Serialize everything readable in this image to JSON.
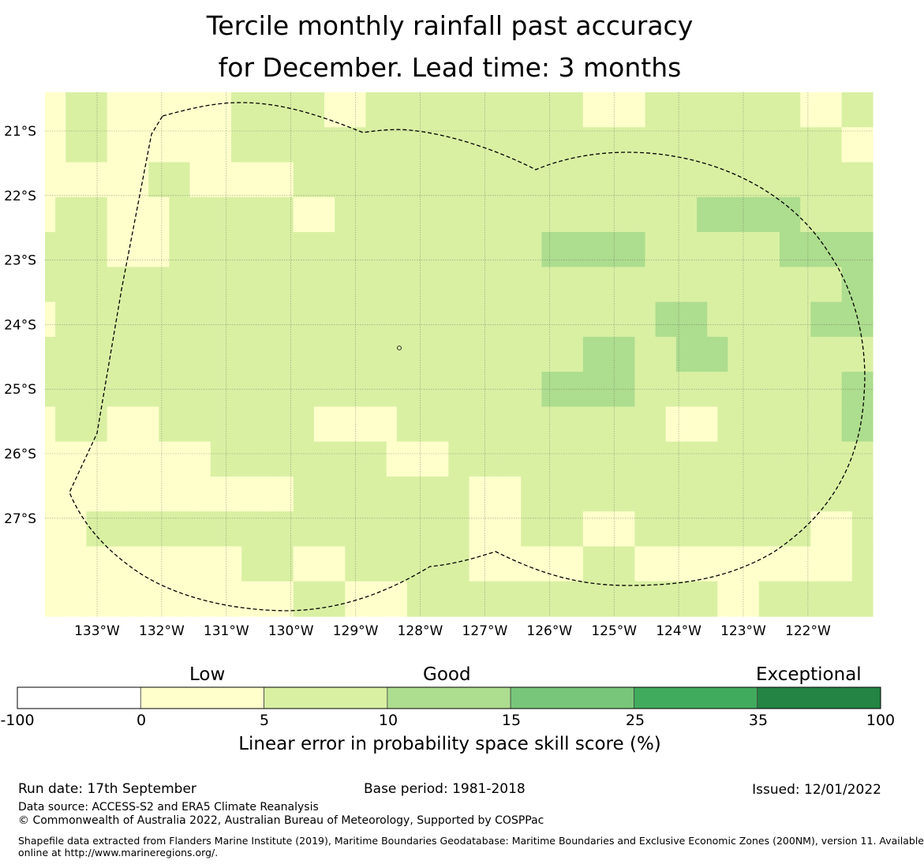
{
  "title": {
    "line1": "Tercile monthly rainfall past accuracy",
    "line2": "for December. Lead time: 3 months"
  },
  "map": {
    "lon_labels": [
      "133°W",
      "132°W",
      "131°W",
      "130°W",
      "129°W",
      "128°W",
      "127°W",
      "126°W",
      "125°W",
      "124°W",
      "123°W",
      "122°W"
    ],
    "lat_labels": [
      "21°S",
      "22°S",
      "23°S",
      "24°S",
      "25°S",
      "26°S",
      "27°S"
    ],
    "grid_rows": [
      "00111100000000000011111111100001111111111111111111110000001111111111111110000111",
      "00111100000000000011111111111111111111111111111111111111111111111111111111111000",
      "00000000001111000000000011111111111111111111111111111111111111111111111111111111",
      "01111100000011111111111100001111111111111111111111111111111111122222222221111111",
      "11111100000011111111111111111111111111111111111122222222221111111111111222222222",
      "11111111111111111111111111111111111111111111111111111111111111111111111111111222",
      "01111111111111111111111111111111111111111111111111111111111222221111111111222222",
      "11111111111111111111111111111111111111111111111111112222211112222211111111111111",
      "11111111111111111111111111111111111111111111111122222222211111111111111111111222",
      "01111100000111111111111111000000001111111111111111111111111100000111111111111222",
      "00000000000000001111111111111111100000011111111111111111111111111111111111111111",
      "00000000000000000000000011111111111111111000001111111111111111111111111111111111",
      "00001111111111111111111111111111111111111000001111110000011111111111111111000011",
      "00000000000000000001111100000111111111111000000000001111100000000000000000000011",
      "00000000000000000000000011111000000111111111111111111111111111111000011111111111"
    ],
    "color_classes": [
      "#ffffcc",
      "#d9f0a3",
      "#addd8e"
    ],
    "color_classes_note": "0: 0–5, 1: 5–10, 2: 10–15"
  },
  "colorbar": {
    "categories": [
      "Low",
      "Good",
      "Exceptional"
    ],
    "ticks": [
      "-100",
      "0",
      "5",
      "10",
      "15",
      "25",
      "35",
      "100"
    ],
    "colors": [
      "#ffffff",
      "#ffffcc",
      "#d9f0a3",
      "#addd8e",
      "#78c679",
      "#41ab5d",
      "#238443"
    ],
    "label": "Linear error in probability space skill score (%)"
  },
  "footer": {
    "run_date": "Run date: 17th September",
    "base_period": "Base period: 1981-2018",
    "issued": "Issued: 12/01/2022",
    "data_source": "Data source: ACCESS-S2 and ERA5 Climate Reanalysis",
    "copyright": "© Commonwealth of Australia 2022, Australian Bureau of Meteorology, Supported by COSPPac",
    "shapefile_line1": "Shapefile data extracted from Flanders Marine Institute (2019), Maritime Boundaries Geodatabase: Maritime Boundaries and Exclusive Economic Zones (200NM), version 11. Available",
    "shapefile_line2": "online at http://www.marineregions.org/."
  }
}
